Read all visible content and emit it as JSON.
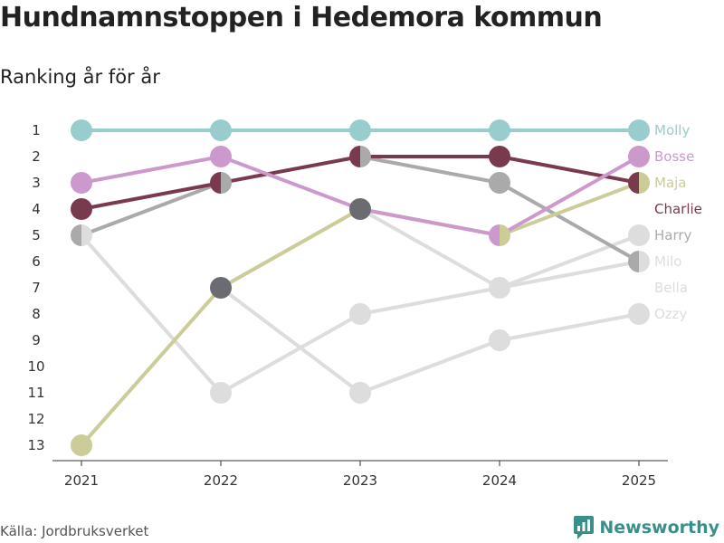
{
  "header": {
    "title": "Hundnamnstoppen i Hedemora kommun",
    "subtitle": "Ranking år för år"
  },
  "footer": {
    "source": "Källa: Jordbruksverket",
    "brand": "Newsworthy"
  },
  "colors": {
    "Molly": "#99cccc",
    "Bosse": "#cc99cc",
    "Maja": "#cccc99",
    "Charlie": "#7a3a4e",
    "Harry": "#aaaaaa",
    "Milo": "#dddddd",
    "Bella": "#dddddd",
    "Ozzy": "#dddddd",
    "dark_gray": "#6b6b72",
    "brand": "#3a8f8a"
  },
  "chart_data": {
    "type": "line",
    "title": "Hundnamnstoppen i Hedemora kommun",
    "subtitle": "Ranking år för år",
    "x": [
      "2021",
      "2022",
      "2023",
      "2024",
      "2025"
    ],
    "y_ticks": [
      "1",
      "2",
      "3",
      "4",
      "5",
      "6",
      "7",
      "8",
      "9",
      "10",
      "11",
      "12",
      "13"
    ],
    "ylim": [
      1,
      13
    ],
    "y_inverted": true,
    "grid": false,
    "series": [
      {
        "name": "Molly",
        "values": [
          1,
          1,
          1,
          1,
          1
        ]
      },
      {
        "name": "Bosse",
        "values": [
          3,
          2,
          4,
          5,
          2
        ]
      },
      {
        "name": "Maja",
        "values": [
          13,
          7,
          4,
          5,
          3
        ]
      },
      {
        "name": "Charlie",
        "values": [
          4,
          3,
          2,
          2,
          3
        ]
      },
      {
        "name": "Harry",
        "values": [
          5,
          3,
          2,
          3,
          6
        ]
      },
      {
        "name": "Milo",
        "values": [
          5,
          11,
          8,
          7,
          6
        ]
      },
      {
        "name": "Bella",
        "values": [
          null,
          7,
          4,
          7,
          5
        ]
      },
      {
        "name": "Ozzy",
        "values": [
          null,
          7,
          11,
          9,
          8
        ]
      }
    ]
  }
}
